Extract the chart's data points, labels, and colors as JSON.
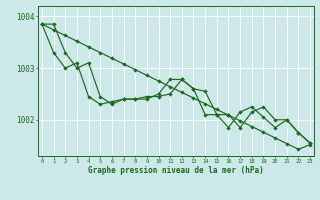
{
  "title": "Graphe pression niveau de la mer (hPa)",
  "bg_color": "#cce8e8",
  "grid_color": "#ffffff",
  "line_color": "#1a6b1a",
  "ylim": [
    1001.3,
    1004.2
  ],
  "xlim": [
    -0.3,
    23.3
  ],
  "yticks": [
    1002,
    1003,
    1004
  ],
  "ytick_labels": [
    "1002",
    "1003",
    "1004"
  ],
  "xtick_labels": [
    "0",
    "1",
    "2",
    "3",
    "4",
    "5",
    "6",
    "7",
    "8",
    "9",
    "10",
    "11",
    "12",
    "13",
    "14",
    "15",
    "16",
    "17",
    "18",
    "19",
    "20",
    "21",
    "22",
    "23"
  ],
  "line_straight": [
    1003.85,
    1003.74,
    1003.63,
    1003.52,
    1003.41,
    1003.3,
    1003.19,
    1003.08,
    1002.97,
    1002.86,
    1002.75,
    1002.64,
    1002.53,
    1002.42,
    1002.31,
    1002.2,
    1002.09,
    1001.98,
    1001.87,
    1001.76,
    1001.65,
    1001.54,
    1001.43,
    1001.52
  ],
  "line_jagged1": [
    1003.85,
    1003.85,
    1003.3,
    1003.0,
    1003.1,
    1002.45,
    1002.3,
    1002.4,
    1002.4,
    1002.4,
    1002.5,
    1002.78,
    1002.78,
    1002.6,
    1002.55,
    1002.1,
    1002.1,
    1001.85,
    1002.15,
    1002.25,
    1002.0,
    1002.0,
    1001.75,
    1001.55
  ],
  "line_jagged2": [
    1003.85,
    1003.3,
    1003.0,
    1003.1,
    1002.45,
    1002.3,
    1002.35,
    1002.4,
    1002.4,
    1002.45,
    1002.45,
    1002.5,
    1002.78,
    1002.6,
    1002.1,
    1002.1,
    1001.85,
    1002.15,
    1002.25,
    1002.05,
    1001.85,
    1002.0,
    1001.75,
    1001.55
  ]
}
